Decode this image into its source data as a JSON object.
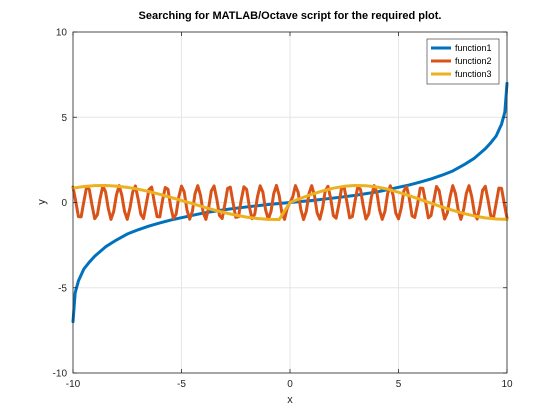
{
  "chart_data": {
    "type": "line",
    "title": "Searching for MATLAB/Octave script for the required plot.",
    "xlabel": "x",
    "ylabel": "y",
    "xlim": [
      -10,
      10
    ],
    "ylim": [
      -10,
      10
    ],
    "xticks": [
      -10,
      -5,
      0,
      5,
      10
    ],
    "yticks": [
      -10,
      -5,
      0,
      5,
      10
    ],
    "xtick_labels": [
      "-10",
      "-5",
      "0",
      "5",
      "10"
    ],
    "ytick_labels": [
      "-10",
      "-5",
      "0",
      "5",
      "10"
    ],
    "grid": true,
    "legend_position": "top-right",
    "series": [
      {
        "name": "function1",
        "color": "#0072bd",
        "x": [
          -10,
          -9.9,
          -9.75,
          -9.5,
          -9.25,
          -9,
          -8.5,
          -8,
          -7.5,
          -7,
          -6.5,
          -6,
          -5.5,
          -5,
          -4,
          -3,
          -2,
          -1,
          0,
          1,
          2,
          3,
          4,
          5,
          5.5,
          6,
          6.5,
          7,
          7.5,
          8,
          8.5,
          9,
          9.25,
          9.5,
          9.75,
          9.9,
          10
        ],
        "y": [
          -6.99,
          -5.3,
          -4.6,
          -3.9,
          -3.5,
          -3.15,
          -2.6,
          -2.2,
          -1.85,
          -1.6,
          -1.38,
          -1.2,
          -1.03,
          -0.89,
          -0.62,
          -0.42,
          -0.26,
          -0.12,
          0,
          0.12,
          0.26,
          0.42,
          0.62,
          0.89,
          1.03,
          1.2,
          1.38,
          1.6,
          1.85,
          2.2,
          2.6,
          3.15,
          3.5,
          3.9,
          4.6,
          5.3,
          6.99
        ]
      },
      {
        "name": "function2",
        "color": "#d95319",
        "x": [
          -10,
          -9.875,
          -9.75,
          -9.625,
          -9.5,
          -9.375,
          -9.25,
          -9.125,
          -9,
          -8.875,
          -8.75,
          -8.625,
          -8.5,
          -8.375,
          -8.25,
          -8.125,
          -8,
          -7.875,
          -7.75,
          -7.625,
          -7.5,
          -7.375,
          -7.25,
          -7.125,
          -7,
          -6.875,
          -6.75,
          -6.625,
          -6.5,
          -6.375,
          -6.25,
          -6.125,
          -6,
          -5.875,
          -5.75,
          -5.625,
          -5.5,
          -5.375,
          -5.25,
          -5.125,
          -5,
          -4.875,
          -4.75,
          -4.625,
          -4.5,
          -4.375,
          -4.25,
          -4.125,
          -4,
          -3.875,
          -3.75,
          -3.625,
          -3.5,
          -3.375,
          -3.25,
          -3.125,
          -3,
          -2.875,
          -2.75,
          -2.625,
          -2.5,
          -2.375,
          -2.25,
          -2.125,
          -2,
          -1.875,
          -1.75,
          -1.625,
          -1.5,
          -1.375,
          -1.25,
          -1.125,
          -1,
          -0.875,
          -0.75,
          -0.625,
          -0.5,
          -0.375,
          -0.25,
          -0.125,
          0,
          0.125,
          0.25,
          0.375,
          0.5,
          0.625,
          0.75,
          0.875,
          1,
          1.125,
          1.25,
          1.375,
          1.5,
          1.625,
          1.75,
          1.875,
          2,
          2.125,
          2.25,
          2.375,
          2.5,
          2.625,
          2.75,
          2.875,
          3,
          3.125,
          3.25,
          3.375,
          3.5,
          3.625,
          3.75,
          3.875,
          4,
          4.125,
          4.25,
          4.375,
          4.5,
          4.625,
          4.75,
          4.875,
          5,
          5.125,
          5.25,
          5.375,
          5.5,
          5.625,
          5.75,
          5.875,
          6,
          6.125,
          6.25,
          6.375,
          6.5,
          6.625,
          6.75,
          6.875,
          7,
          7.125,
          7.25,
          7.375,
          7.5,
          7.625,
          7.75,
          7.875,
          8,
          8.125,
          8.25,
          8.375,
          8.5,
          8.625,
          8.75,
          8.875,
          9,
          9.125,
          9.25,
          9.375,
          9.5,
          9.625,
          9.75,
          9.875,
          10
        ],
        "y": [
          0.91,
          0.08,
          -0.83,
          -0.84,
          0.05,
          0.9,
          0.77,
          -0.15,
          -0.95,
          -0.71,
          0.24,
          0.97,
          0.62,
          -0.34,
          -0.99,
          -0.53,
          0.43,
          0.99,
          0.42,
          -0.52,
          -0.99,
          -0.32,
          0.61,
          0.97,
          0.21,
          -0.69,
          -0.94,
          -0.1,
          0.76,
          0.9,
          -0.01,
          -0.83,
          -0.84,
          0.12,
          0.88,
          0.78,
          -0.23,
          -0.93,
          -0.7,
          0.33,
          0.96,
          0.62,
          -0.43,
          -0.98,
          -0.53,
          0.52,
          0.99,
          0.43,
          -0.6,
          -0.99,
          -0.32,
          0.68,
          0.97,
          0.21,
          -0.76,
          -0.94,
          -0.1,
          0.82,
          0.9,
          -0.01,
          -0.87,
          -0.84,
          0.13,
          0.92,
          0.77,
          -0.23,
          -0.95,
          -0.69,
          0.33,
          0.98,
          0.61,
          -0.43,
          -0.99,
          -0.52,
          0.52,
          1.0,
          0.42,
          -0.6,
          -0.99,
          -0.32,
          0,
          0.32,
          0.99,
          0.6,
          -0.42,
          -1.0,
          -0.52,
          0.52,
          0.99,
          0.43,
          -0.61,
          -0.98,
          -0.33,
          0.69,
          0.95,
          0.23,
          -0.77,
          -0.92,
          -0.13,
          0.84,
          0.87,
          0.01,
          -0.9,
          -0.82,
          0.1,
          0.94,
          0.76,
          -0.21,
          -0.97,
          -0.68,
          0.32,
          0.99,
          0.6,
          -0.43,
          -0.99,
          -0.52,
          0.53,
          0.98,
          0.43,
          -0.62,
          -0.96,
          -0.33,
          0.7,
          0.93,
          0.23,
          -0.78,
          -0.88,
          -0.12,
          0.84,
          0.83,
          0.01,
          -0.9,
          -0.76,
          0.1,
          0.94,
          0.69,
          -0.21,
          -0.97,
          -0.61,
          0.32,
          0.99,
          0.52,
          -0.42,
          -0.99,
          -0.43,
          0.53,
          0.99,
          0.34,
          -0.62,
          -0.97,
          -0.24,
          0.71,
          0.95,
          0.15,
          -0.77,
          -0.9,
          -0.05,
          0.84,
          0.83,
          -0.08,
          -0.91
        ]
      },
      {
        "name": "function3",
        "color": "#edb120",
        "x": [
          -10,
          -9.5,
          -9,
          -8.5,
          -8,
          -7.5,
          -7,
          -6.5,
          -6,
          -5.5,
          -5,
          -4.5,
          -4,
          -3.5,
          -3,
          -2.5,
          -2,
          -1.5,
          -1,
          -0.5,
          0,
          0.5,
          1,
          1.5,
          2,
          2.5,
          3,
          3.5,
          4,
          4.5,
          5,
          5.5,
          6,
          6.5,
          7,
          7.5,
          8,
          8.5,
          9,
          9.5,
          10
        ],
        "y": [
          0.84,
          0.94,
          0.99,
          1.0,
          0.96,
          0.89,
          0.78,
          0.64,
          0.48,
          0.3,
          0.12,
          -0.06,
          -0.26,
          -0.44,
          -0.6,
          -0.74,
          -0.86,
          -0.94,
          -0.99,
          -1.0,
          0,
          0.25,
          0.48,
          0.68,
          0.84,
          0.95,
          1.0,
          0.98,
          0.91,
          0.78,
          0.6,
          0.4,
          0.18,
          -0.04,
          -0.26,
          -0.46,
          -0.64,
          -0.79,
          -0.9,
          -0.97,
          -0.99
        ]
      }
    ]
  }
}
